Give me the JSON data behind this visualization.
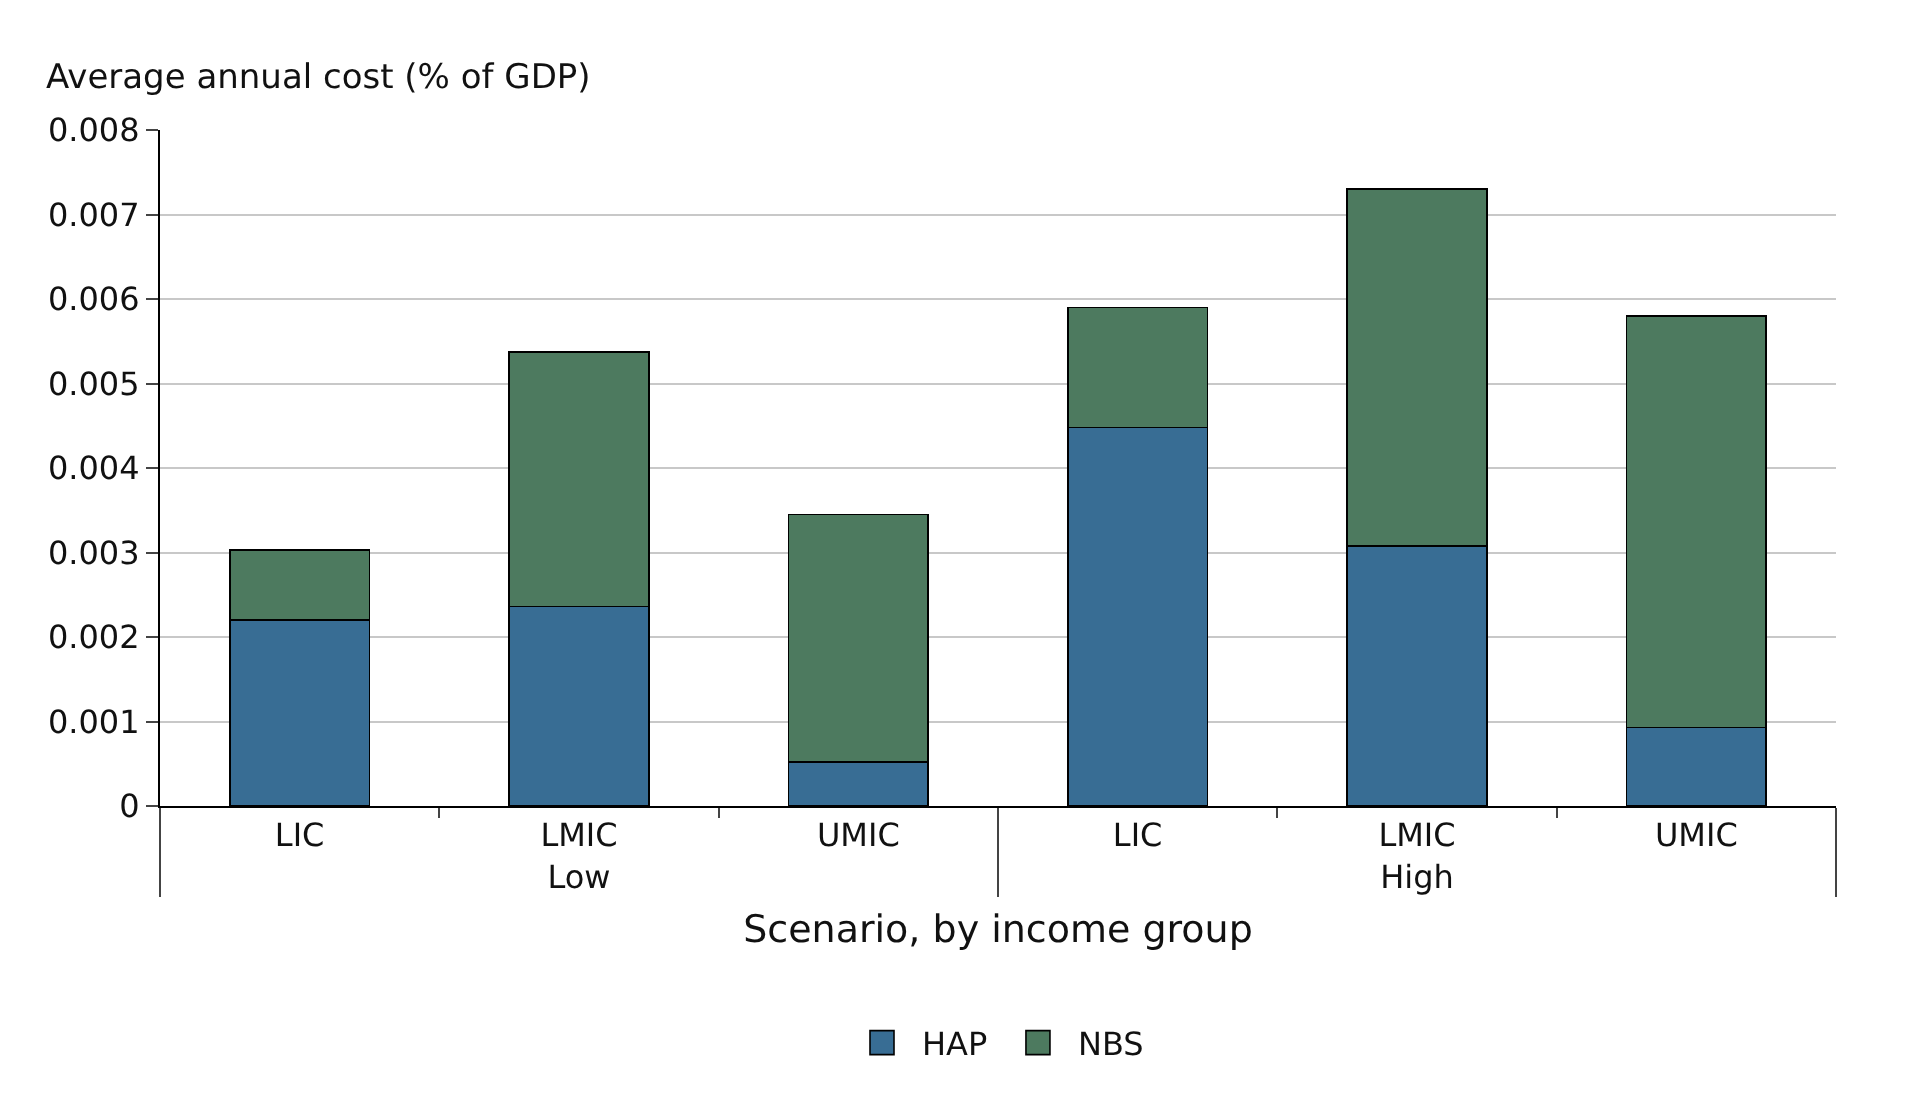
{
  "chart_data": {
    "type": "bar",
    "stacked": true,
    "ylabel": "Average annual cost (% of GDP)",
    "xlabel": "Scenario, by income group",
    "categories": [
      "LIC",
      "LMIC",
      "UMIC",
      "LIC",
      "LMIC",
      "UMIC"
    ],
    "annotations": [
      "Low",
      "High"
    ],
    "series": [
      {
        "name": "HAP",
        "color": "#386d94",
        "values": [
          0.0022,
          0.00236,
          0.00052,
          0.00448,
          0.00308,
          0.00093
        ]
      },
      {
        "name": "NBS",
        "color": "#4d7a5f",
        "values": [
          0.00083,
          0.00301,
          0.00293,
          0.00142,
          0.00422,
          0.00487
        ]
      }
    ],
    "ylim": [
      0,
      0.008
    ],
    "yticks": [
      0,
      0.001,
      0.002,
      0.003,
      0.004,
      0.005,
      0.006,
      0.007,
      0.008
    ],
    "grid": "y",
    "legend": "bottom"
  }
}
